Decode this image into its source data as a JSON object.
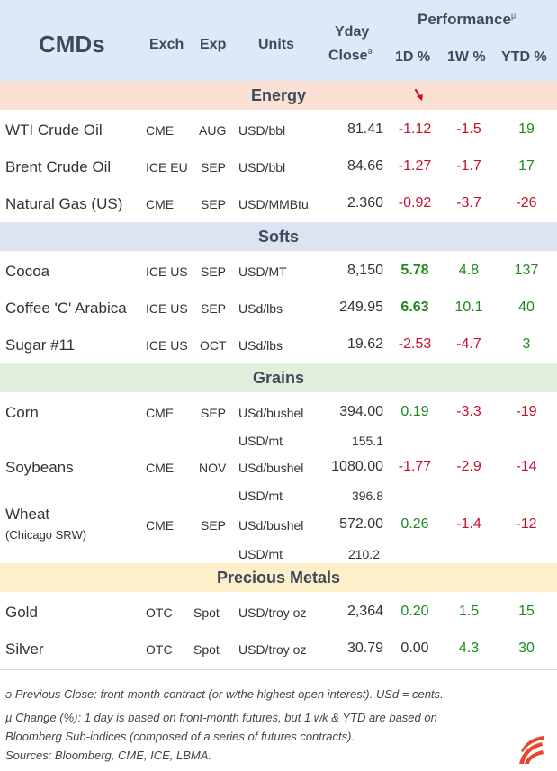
{
  "header": {
    "title": "CMDs",
    "exch": "Exch",
    "exp": "Exp",
    "units": "Units",
    "close_line1": "Yday",
    "close_line2": "Close",
    "close_mark": "ə",
    "performance": "Performance",
    "perf_mark": "µ",
    "d1": "1D %",
    "w1": "1W %",
    "ytd": "YTD %"
  },
  "sections": {
    "energy": "Energy",
    "softs": "Softs",
    "grains": "Grains",
    "metals": "Precious Metals"
  },
  "rows": {
    "wti": {
      "name": "WTI Crude Oil",
      "exch": "CME",
      "exp": "AUG",
      "units": "USD/bbl",
      "close": "81.41",
      "d1": "-1.12",
      "w1": "-1.5",
      "ytd": "19"
    },
    "brent": {
      "name": "Brent Crude Oil",
      "exch": "ICE EU",
      "exp": "SEP",
      "units": "USD/bbl",
      "close": "84.66",
      "d1": "-1.27",
      "w1": "-1.7",
      "ytd": "17"
    },
    "natgas": {
      "name": "Natural Gas (US)",
      "exch": "CME",
      "exp": "SEP",
      "units": "USD/MMBtu",
      "close": "2.360",
      "d1": "-0.92",
      "w1": "-3.7",
      "ytd": "-26"
    },
    "cocoa": {
      "name": "Cocoa",
      "exch": "ICE US",
      "exp": "SEP",
      "units": "USD/MT",
      "close": "8,150",
      "d1": "5.78",
      "w1": "4.8",
      "ytd": "137"
    },
    "coffee": {
      "name": "Coffee 'C' Arabica",
      "exch": "ICE US",
      "exp": "SEP",
      "units": "USd/lbs",
      "close": "249.95",
      "d1": "6.63",
      "w1": "10.1",
      "ytd": "40"
    },
    "sugar": {
      "name": "Sugar #11",
      "exch": "ICE US",
      "exp": "OCT",
      "units": "USd/lbs",
      "close": "19.62",
      "d1": "-2.53",
      "w1": "-4.7",
      "ytd": "3"
    },
    "corn": {
      "name": "Corn",
      "exch": "CME",
      "exp": "SEP",
      "units": "USd/bushel",
      "close": "394.00",
      "d1": "0.19",
      "w1": "-3.3",
      "ytd": "-19",
      "units2": "USD/mt",
      "close2": "155.1"
    },
    "soy": {
      "name": "Soybeans",
      "exch": "CME",
      "exp": "NOV",
      "units": "USd/bushel",
      "close": "1080.00",
      "d1": "-1.77",
      "w1": "-2.9",
      "ytd": "-14",
      "units2": "USD/mt",
      "close2": "396.8"
    },
    "wheat": {
      "name": "Wheat",
      "sub": "(Chicago SRW)",
      "exch": "CME",
      "exp": "SEP",
      "units": "USd/bushel",
      "close": "572.00",
      "d1": "0.26",
      "w1": "-1.4",
      "ytd": "-12",
      "units2": "USD/mt",
      "close2": "210.2"
    },
    "gold": {
      "name": "Gold",
      "exch": "OTC",
      "exp": "Spot",
      "units": "USD/troy oz",
      "close": "2,364",
      "d1": "0.20",
      "w1": "1.5",
      "ytd": "15"
    },
    "silver": {
      "name": "Silver",
      "exch": "OTC",
      "exp": "Spot",
      "units": "USD/troy oz",
      "close": "30.79",
      "d1": "0.00",
      "w1": "4.3",
      "ytd": "30"
    }
  },
  "footnotes": {
    "line1": "ə Previous Close: front-month contract (or w/the highest open interest). USd = cents.",
    "line2": "µ  Change (%): 1 day is based on front-month futures, but 1 wk & YTD are based on",
    "line3": "Bloomberg Sub-indices (composed of a series of futures contracts).",
    "line4": "Sources: Bloomberg, CME, ICE, LBMA."
  },
  "colors": {
    "negative": "#c8102e",
    "positive": "#1e8a1e",
    "header_bg": "#dce9f6",
    "energy_bg": "#fbe1d5",
    "softs_bg": "#dce4f2",
    "grains_bg": "#e2eedb",
    "metals_bg": "#fcefc9",
    "logo": "#e8442e"
  }
}
